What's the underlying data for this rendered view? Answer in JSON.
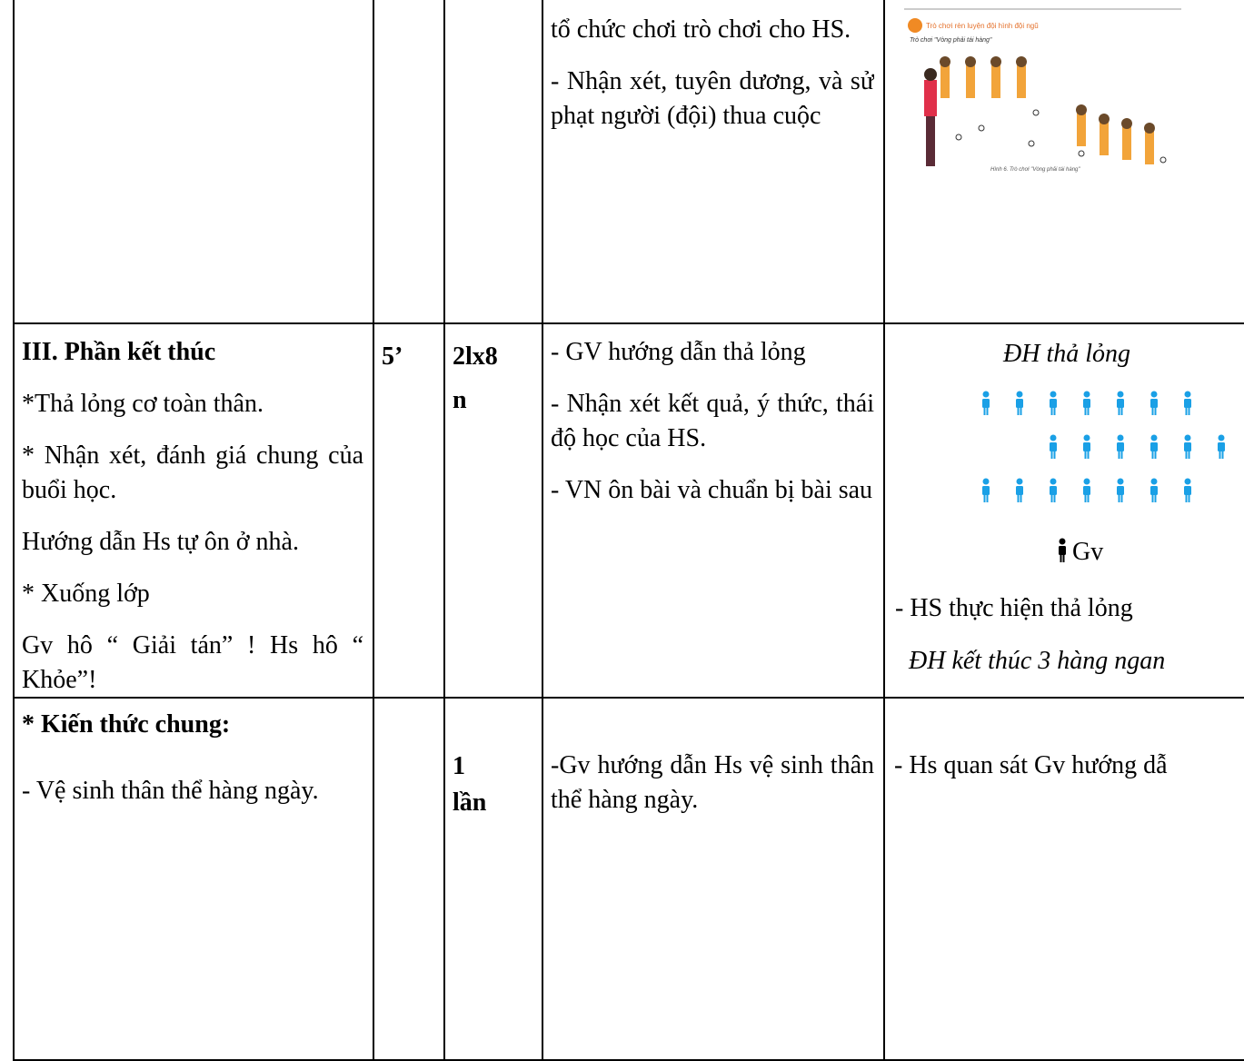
{
  "table": {
    "rows": [
      {
        "cells": [
          {
            "paragraphs": []
          },
          {
            "lines": []
          },
          {
            "lines": []
          },
          {
            "paragraphs": [
              "tổ chức chơi trò chơi cho HS.",
              "- Nhận xét, tuyên dương, và sử phạt người (đội) thua cuộc"
            ]
          },
          {
            "image": {
              "title": "Trò chơi rèn luyện đội hình đội ngũ",
              "subtitle": "Trò chơi \"Vòng phải tái hàng\"",
              "caption": "Hình 6. Trò chơi \"Vòng phải tái hàng\""
            }
          }
        ]
      },
      {
        "cells": [
          {
            "heading": "III. Phần kết thúc",
            "paragraphs": [
              "*Thả lỏng cơ toàn thân.",
              "* Nhận xét, đánh giá chung của buổi học.",
              " Hướng dẫn Hs tự ôn ở nhà.",
              "* Xuống lớp",
              "Gv hô “ Giải tán” ! Hs hô “ Khỏe”!"
            ]
          },
          {
            "lines": [
              "5’"
            ]
          },
          {
            "lines": [
              "2lx8",
              "n"
            ]
          },
          {
            "paragraphs": [
              "- GV hướng dẫn thả lỏng",
              "- Nhận xét kết quả, ý thức, thái độ học của HS.",
              "- VN ôn bài và chuẩn bị bài sau"
            ]
          },
          {
            "formation": {
              "title": "ĐH thả lỏng",
              "teacher": "Gv",
              "activity": "- HS thực hiện thả lỏng",
              "note": "ĐH kết thúc 3 hàng ngan"
            }
          }
        ]
      },
      {
        "cells": [
          {
            "heading": "* Kiến thức chung:",
            "paragraphs": [
              "- Vệ sinh thân thể hàng ngày."
            ]
          },
          {
            "lines": []
          },
          {
            "lines": [
              "1",
              "lần"
            ]
          },
          {
            "paragraphs": [
              "-Gv hướng dẫn Hs vệ sinh thân thể hàng ngày."
            ]
          },
          {
            "paragraphs": [
              "- Hs quan sát Gv hướng dẫ"
            ]
          }
        ]
      }
    ]
  }
}
